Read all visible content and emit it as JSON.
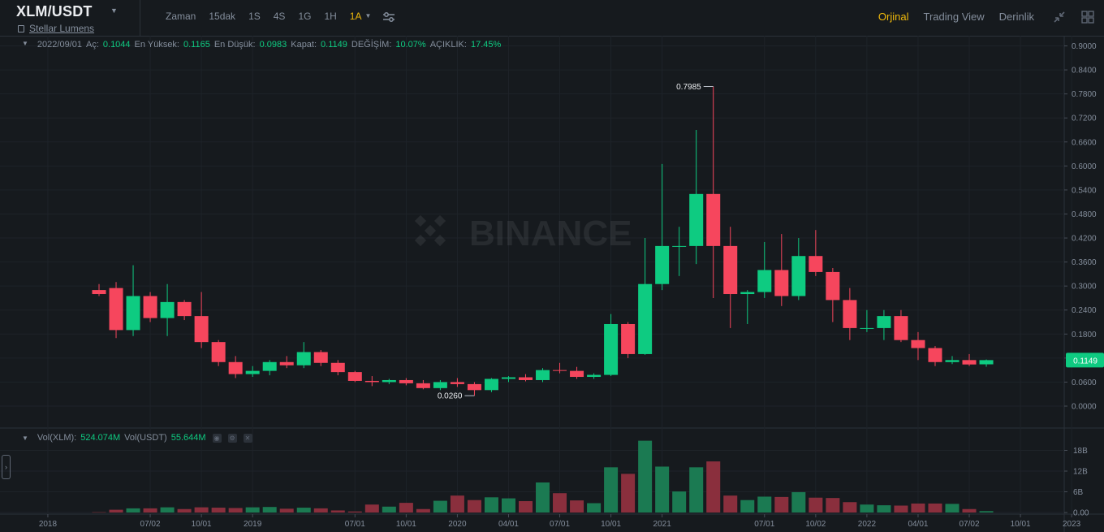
{
  "header": {
    "symbol": "XLM/USDT",
    "full_name": "Stellar Lumens",
    "intervals": [
      "Zaman",
      "15dak",
      "1S",
      "4S",
      "1G",
      "1H",
      "1A"
    ],
    "active_interval": "1A",
    "views": [
      "Orjinal",
      "Trading View",
      "Derinlik"
    ],
    "active_view": "Orjinal"
  },
  "ohlc": {
    "date": "2022/09/01",
    "open_label": "Aç:",
    "open": "0.1044",
    "high_label": "En Yüksek:",
    "high": "0.1165",
    "low_label": "En Düşük:",
    "low": "0.0983",
    "close_label": "Kapat:",
    "close": "0.1149",
    "change_label": "DEĞİŞİM:",
    "change": "10.07%",
    "amplitude_label": "AÇIKLIK:",
    "amplitude": "17.45%"
  },
  "volume_legend": {
    "vol_xlm_label": "Vol(XLM):",
    "vol_xlm": "524.074M",
    "vol_usdt_label": "Vol(USDT)",
    "vol_usdt": "55.644M"
  },
  "watermark": "BINANCE",
  "colors": {
    "up": "#0ecb81",
    "down": "#f6465d",
    "up_vol": "#1b7a52",
    "down_vol": "#8a2f3d",
    "accent": "#f0b90b"
  },
  "chart_data": {
    "type": "candlestick",
    "interval": "1M",
    "price_axis_ticks": [
      "0.0000",
      "0.0600",
      "0.1200",
      "0.1800",
      "0.2400",
      "0.3000",
      "0.3600",
      "0.4200",
      "0.4800",
      "0.5400",
      "0.6000",
      "0.6600",
      "0.7200",
      "0.7800",
      "0.8400",
      "0.9000"
    ],
    "price_ylim": [
      -0.03,
      0.9
    ],
    "volume_axis_ticks": [
      "0.00",
      "6B",
      "12B",
      "18B"
    ],
    "volume_ylim": [
      0,
      20
    ],
    "time_axis_labels": [
      "2018",
      "07/02",
      "10/01",
      "2019",
      "07/01",
      "10/01",
      "2020",
      "04/01",
      "07/01",
      "10/01",
      "2021",
      "07/01",
      "10/02",
      "2022",
      "04/01",
      "07/02",
      "10/01",
      "2023"
    ],
    "last_price": "0.1149",
    "max_annotation": "0.7985",
    "min_annotation": "0.0260",
    "candles": [
      {
        "o": 0.29,
        "h": 0.305,
        "l": 0.275,
        "c": 0.28
      },
      {
        "o": 0.295,
        "h": 0.31,
        "l": 0.17,
        "c": 0.19
      },
      {
        "o": 0.19,
        "h": 0.352,
        "l": 0.175,
        "c": 0.275
      },
      {
        "o": 0.275,
        "h": 0.285,
        "l": 0.21,
        "c": 0.22
      },
      {
        "o": 0.22,
        "h": 0.305,
        "l": 0.175,
        "c": 0.26
      },
      {
        "o": 0.26,
        "h": 0.265,
        "l": 0.215,
        "c": 0.225
      },
      {
        "o": 0.225,
        "h": 0.285,
        "l": 0.145,
        "c": 0.16
      },
      {
        "o": 0.16,
        "h": 0.165,
        "l": 0.1,
        "c": 0.11
      },
      {
        "o": 0.11,
        "h": 0.125,
        "l": 0.07,
        "c": 0.08
      },
      {
        "o": 0.08,
        "h": 0.1,
        "l": 0.073,
        "c": 0.088
      },
      {
        "o": 0.088,
        "h": 0.115,
        "l": 0.077,
        "c": 0.11
      },
      {
        "o": 0.11,
        "h": 0.125,
        "l": 0.095,
        "c": 0.102
      },
      {
        "o": 0.102,
        "h": 0.16,
        "l": 0.095,
        "c": 0.135
      },
      {
        "o": 0.135,
        "h": 0.14,
        "l": 0.1,
        "c": 0.108
      },
      {
        "o": 0.108,
        "h": 0.115,
        "l": 0.077,
        "c": 0.085
      },
      {
        "o": 0.085,
        "h": 0.088,
        "l": 0.06,
        "c": 0.063
      },
      {
        "o": 0.063,
        "h": 0.075,
        "l": 0.05,
        "c": 0.06
      },
      {
        "o": 0.06,
        "h": 0.068,
        "l": 0.055,
        "c": 0.065
      },
      {
        "o": 0.065,
        "h": 0.07,
        "l": 0.052,
        "c": 0.057
      },
      {
        "o": 0.057,
        "h": 0.065,
        "l": 0.042,
        "c": 0.045
      },
      {
        "o": 0.045,
        "h": 0.065,
        "l": 0.04,
        "c": 0.06
      },
      {
        "o": 0.06,
        "h": 0.07,
        "l": 0.048,
        "c": 0.055
      },
      {
        "o": 0.055,
        "h": 0.06,
        "l": 0.026,
        "c": 0.04
      },
      {
        "o": 0.04,
        "h": 0.07,
        "l": 0.035,
        "c": 0.068
      },
      {
        "o": 0.068,
        "h": 0.075,
        "l": 0.06,
        "c": 0.072
      },
      {
        "o": 0.072,
        "h": 0.08,
        "l": 0.062,
        "c": 0.065
      },
      {
        "o": 0.065,
        "h": 0.095,
        "l": 0.06,
        "c": 0.09
      },
      {
        "o": 0.09,
        "h": 0.108,
        "l": 0.082,
        "c": 0.088
      },
      {
        "o": 0.088,
        "h": 0.098,
        "l": 0.068,
        "c": 0.073
      },
      {
        "o": 0.073,
        "h": 0.082,
        "l": 0.068,
        "c": 0.078
      },
      {
        "o": 0.078,
        "h": 0.23,
        "l": 0.075,
        "c": 0.205
      },
      {
        "o": 0.205,
        "h": 0.21,
        "l": 0.12,
        "c": 0.13
      },
      {
        "o": 0.13,
        "h": 0.42,
        "l": 0.128,
        "c": 0.305
      },
      {
        "o": 0.305,
        "h": 0.605,
        "l": 0.29,
        "c": 0.4
      },
      {
        "o": 0.4,
        "h": 0.448,
        "l": 0.325,
        "c": 0.4
      },
      {
        "o": 0.4,
        "h": 0.69,
        "l": 0.355,
        "c": 0.53
      },
      {
        "o": 0.53,
        "h": 0.7985,
        "l": 0.27,
        "c": 0.4
      },
      {
        "o": 0.4,
        "h": 0.448,
        "l": 0.195,
        "c": 0.28
      },
      {
        "o": 0.28,
        "h": 0.29,
        "l": 0.205,
        "c": 0.285
      },
      {
        "o": 0.285,
        "h": 0.41,
        "l": 0.27,
        "c": 0.34
      },
      {
        "o": 0.34,
        "h": 0.43,
        "l": 0.25,
        "c": 0.275
      },
      {
        "o": 0.275,
        "h": 0.42,
        "l": 0.265,
        "c": 0.375
      },
      {
        "o": 0.375,
        "h": 0.44,
        "l": 0.325,
        "c": 0.335
      },
      {
        "o": 0.335,
        "h": 0.345,
        "l": 0.21,
        "c": 0.265
      },
      {
        "o": 0.265,
        "h": 0.295,
        "l": 0.165,
        "c": 0.195
      },
      {
        "o": 0.195,
        "h": 0.24,
        "l": 0.185,
        "c": 0.195
      },
      {
        "o": 0.195,
        "h": 0.24,
        "l": 0.165,
        "c": 0.225
      },
      {
        "o": 0.225,
        "h": 0.24,
        "l": 0.16,
        "c": 0.165
      },
      {
        "o": 0.165,
        "h": 0.185,
        "l": 0.115,
        "c": 0.145
      },
      {
        "o": 0.145,
        "h": 0.15,
        "l": 0.1,
        "c": 0.11
      },
      {
        "o": 0.11,
        "h": 0.125,
        "l": 0.105,
        "c": 0.115
      },
      {
        "o": 0.115,
        "h": 0.13,
        "l": 0.1,
        "c": 0.104
      },
      {
        "o": 0.1044,
        "h": 0.1165,
        "l": 0.0983,
        "c": 0.1149
      }
    ],
    "volumes": [
      0.1,
      0.8,
      1.2,
      1.2,
      1.5,
      1.0,
      1.5,
      1.4,
      1.3,
      1.5,
      1.6,
      1.1,
      1.4,
      1.2,
      0.6,
      0.3,
      2.3,
      1.7,
      2.8,
      1.0,
      3.4,
      4.9,
      3.6,
      4.4,
      4.1,
      3.3,
      8.7,
      5.6,
      3.5,
      2.7,
      13.1,
      11.2,
      20.8,
      13.3,
      6.1,
      13.1,
      14.8,
      4.9,
      3.6,
      4.6,
      4.5,
      5.9,
      4.3,
      4.2,
      3.0,
      2.3,
      2.1,
      2.0,
      2.6,
      2.6,
      2.5,
      1.0,
      0.4
    ]
  }
}
